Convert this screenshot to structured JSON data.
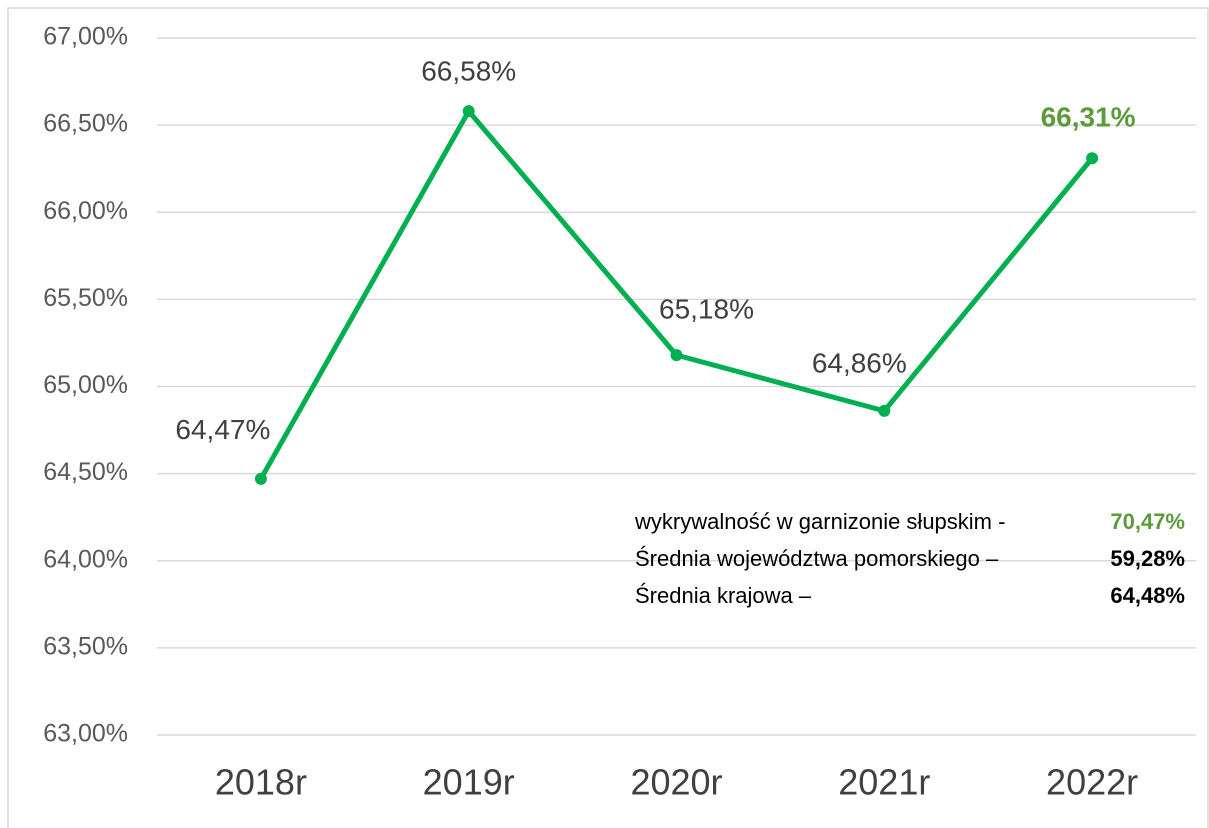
{
  "chart_data": {
    "type": "line",
    "categories": [
      "2018r",
      "2019r",
      "2020r",
      "2021r",
      "2022r"
    ],
    "series": [
      {
        "name": "wykrywalność",
        "color": "#00b050",
        "values": [
          64.47,
          66.58,
          65.18,
          64.86,
          66.31
        ],
        "value_labels": [
          "64,47%",
          "66,58%",
          "65,18%",
          "64,86%",
          "66,31%"
        ],
        "value_label_colors": [
          "#404040",
          "#404040",
          "#404040",
          "#404040",
          "#5b9b3a"
        ]
      }
    ],
    "ylim": [
      63,
      67
    ],
    "yticks": [
      {
        "value": 63,
        "label": "63,00%"
      },
      {
        "value": 63.5,
        "label": "63,50%"
      },
      {
        "value": 64,
        "label": "64,00%"
      },
      {
        "value": 64.5,
        "label": "64,50%"
      },
      {
        "value": 65,
        "label": "65,00%"
      },
      {
        "value": 65.5,
        "label": "65,50%"
      },
      {
        "value": 66,
        "label": "66,00%"
      },
      {
        "value": 66.5,
        "label": "66,50%"
      },
      {
        "value": 67,
        "label": "67,00%"
      }
    ],
    "grid": true,
    "annotations": [
      {
        "text": "wykrywalność w garnizonie słupskim -",
        "value": "70,47%",
        "color": "#5b9b3a"
      },
      {
        "text": "Średnia województwa pomorskiego –",
        "value": "59,28%",
        "color": "#000000"
      },
      {
        "text": "Średnia krajowa –",
        "value": "64,48%",
        "color": "#000000"
      }
    ]
  }
}
